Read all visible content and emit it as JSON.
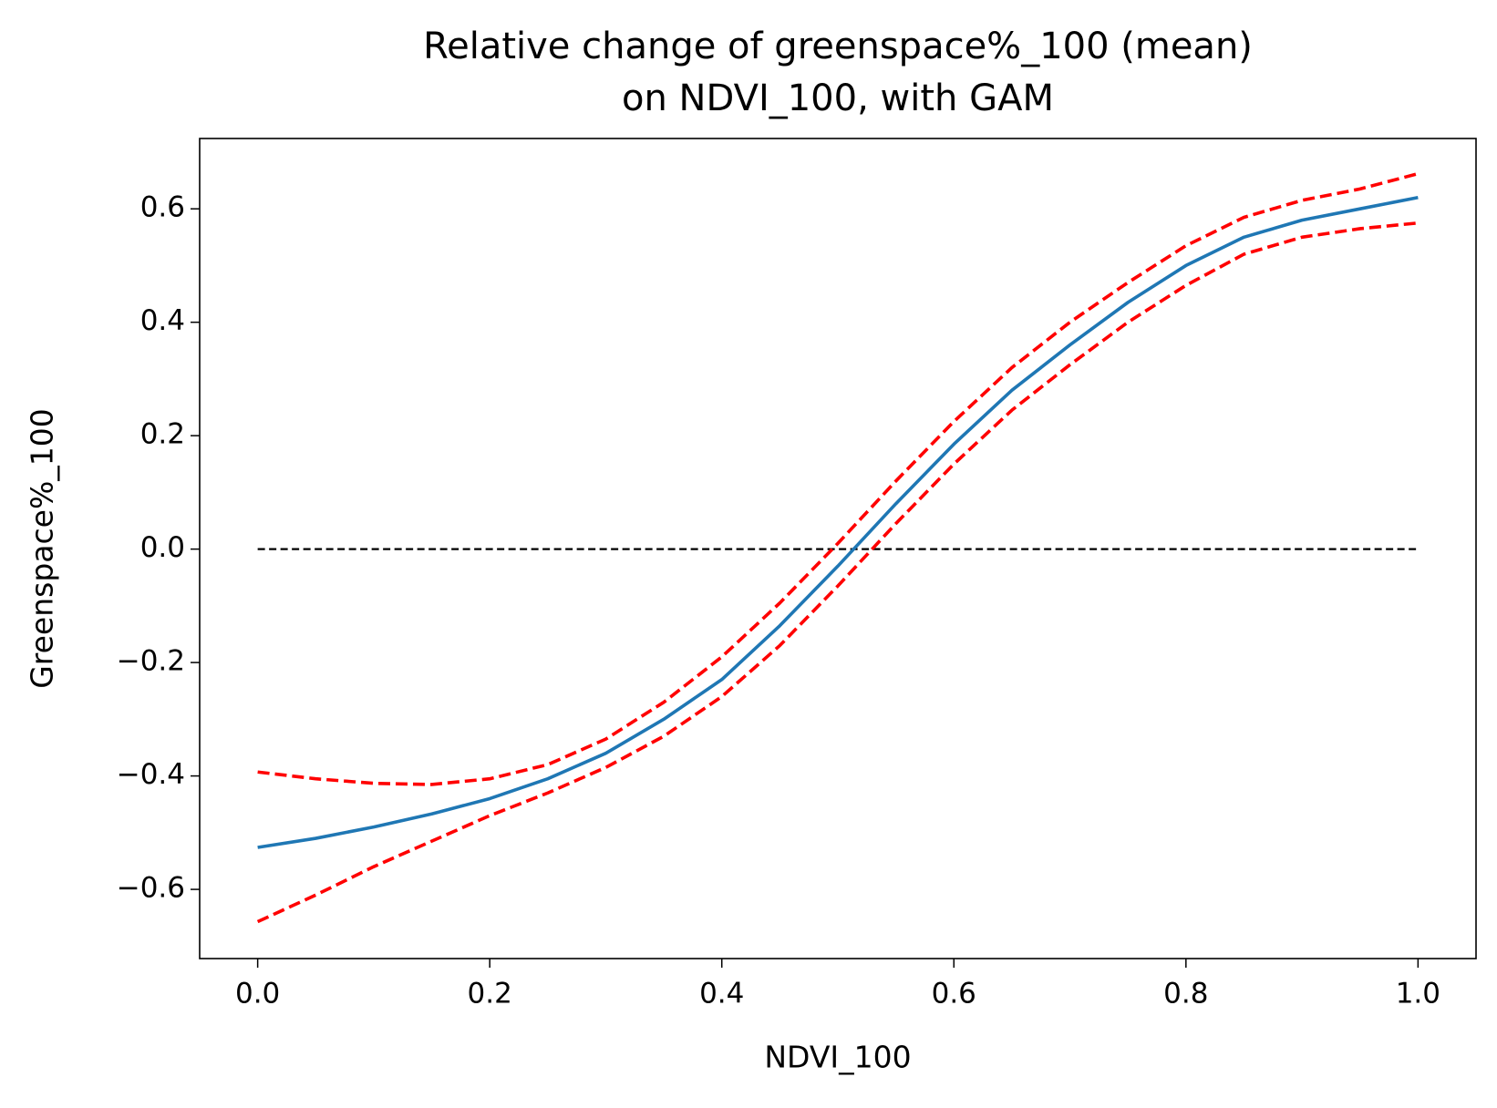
{
  "chart_data": {
    "type": "line",
    "title": [
      "Relative change of greenspace%_100 (mean)",
      "on NDVI_100, with GAM"
    ],
    "xlabel": "NDVI_100",
    "ylabel": "Greenspace%_100",
    "xlim": [
      -0.05,
      1.05
    ],
    "ylim": [
      -0.722,
      0.724
    ],
    "xticks": [
      {
        "value": 0,
        "label": "0.0"
      },
      0.2,
      0.4,
      0.6,
      0.8,
      {
        "value": 1,
        "label": "1.0"
      }
    ],
    "yticks": [
      {
        "value": -0.6,
        "label": "−0.6"
      },
      {
        "value": -0.4,
        "label": "−0.4"
      },
      {
        "value": -0.2,
        "label": "−0.2"
      },
      {
        "value": 0,
        "label": "0.0"
      },
      0.2,
      0.4,
      0.6
    ],
    "grid": false,
    "series": [
      {
        "color": "#000000",
        "linestyle": "dashed",
        "x": [
          0,
          1
        ],
        "values": [
          0,
          0
        ]
      },
      {
        "color": "#ff0000",
        "linestyle": "dashed",
        "x": [
          0,
          0.05,
          0.1,
          0.15,
          0.2,
          0.25,
          0.3,
          0.35,
          0.4,
          0.45,
          0.5,
          0.55,
          0.6,
          0.65,
          0.7,
          0.75,
          0.8,
          0.85,
          0.9,
          0.95,
          1
        ],
        "values": [
          -0.393,
          -0.405,
          -0.413,
          -0.415,
          -0.405,
          -0.38,
          -0.335,
          -0.27,
          -0.19,
          -0.095,
          0.01,
          0.12,
          0.225,
          0.32,
          0.4,
          0.47,
          0.535,
          0.585,
          0.615,
          0.635,
          0.662
        ]
      },
      {
        "color": "#ff0000",
        "linestyle": "dashed",
        "x": [
          0,
          0.05,
          0.1,
          0.15,
          0.2,
          0.25,
          0.3,
          0.35,
          0.4,
          0.45,
          0.5,
          0.55,
          0.6,
          0.65,
          0.7,
          0.75,
          0.8,
          0.85,
          0.9,
          0.95,
          1
        ],
        "values": [
          -0.657,
          -0.61,
          -0.56,
          -0.515,
          -0.47,
          -0.43,
          -0.385,
          -0.33,
          -0.26,
          -0.17,
          -0.065,
          0.045,
          0.15,
          0.245,
          0.325,
          0.4,
          0.465,
          0.52,
          0.55,
          0.565,
          0.575
        ]
      },
      {
        "color": "#1f77b4",
        "linestyle": "solid",
        "x": [
          0,
          0.05,
          0.1,
          0.15,
          0.2,
          0.25,
          0.3,
          0.35,
          0.4,
          0.45,
          0.5,
          0.55,
          0.6,
          0.65,
          0.7,
          0.75,
          0.8,
          0.85,
          0.9,
          0.95,
          1
        ],
        "values": [
          -0.526,
          -0.51,
          -0.49,
          -0.467,
          -0.44,
          -0.405,
          -0.36,
          -0.3,
          -0.23,
          -0.135,
          -0.03,
          0.08,
          0.185,
          0.28,
          0.36,
          0.435,
          0.5,
          0.55,
          0.58,
          0.6,
          0.62
        ]
      }
    ]
  }
}
